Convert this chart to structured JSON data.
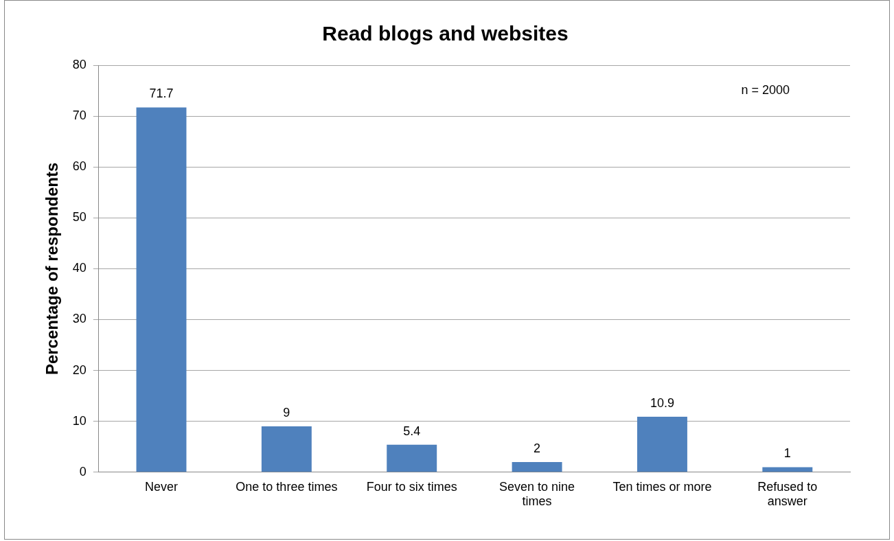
{
  "chart_data": {
    "type": "bar",
    "title": "Read blogs and websites",
    "ylabel": "Percentage of respondents",
    "categories": [
      "Never",
      "One to three times",
      "Four to six times",
      "Seven to nine times",
      "Ten times or more",
      "Refused to answer"
    ],
    "values": [
      71.7,
      9,
      5.4,
      2,
      10.9,
      1
    ],
    "color": "#4f81bd",
    "ylim": [
      0,
      80
    ],
    "yticks": [
      0,
      10,
      20,
      30,
      40,
      50,
      60,
      70,
      80
    ],
    "grid": "y",
    "data_labels": true,
    "legend": false,
    "annotations": [
      "n = 2000"
    ]
  }
}
